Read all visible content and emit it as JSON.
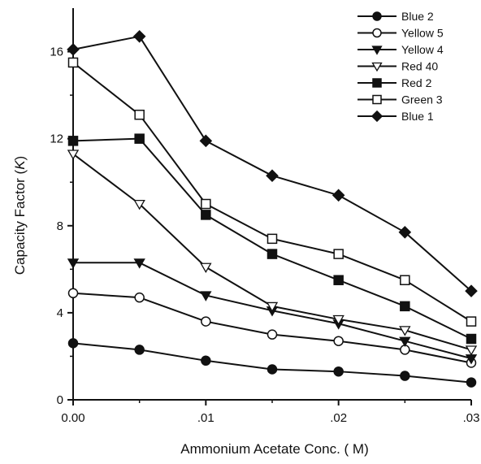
{
  "chart_data": {
    "type": "line",
    "title": "",
    "xlabel": "Ammonium Acetate Conc. ( M)",
    "ylabel_prefix": "Capacity Factor (",
    "ylabel_symbol": "K",
    "ylabel_suffix": ")",
    "xlim": [
      0,
      0.03
    ],
    "ylim": [
      0,
      18
    ],
    "x": [
      0.0,
      0.005,
      0.01,
      0.015,
      0.02,
      0.025,
      0.03
    ],
    "x_ticks": [
      {
        "value": 0.0,
        "label": "0.00"
      },
      {
        "value": 0.01,
        "label": ".01"
      },
      {
        "value": 0.02,
        "label": ".02"
      },
      {
        "value": 0.03,
        "label": ".03"
      }
    ],
    "y_ticks": [
      {
        "value": 0,
        "label": "0"
      },
      {
        "value": 4,
        "label": "4"
      },
      {
        "value": 8,
        "label": "8"
      },
      {
        "value": 12,
        "label": "12"
      },
      {
        "value": 16,
        "label": "16"
      }
    ],
    "grid": false,
    "legend_position": "top-right",
    "series": [
      {
        "name": "Blue 2",
        "marker": "circle-filled",
        "values": [
          2.6,
          2.3,
          1.8,
          1.4,
          1.3,
          1.1,
          0.8
        ]
      },
      {
        "name": "Yellow 5",
        "marker": "circle-open",
        "values": [
          4.9,
          4.7,
          3.6,
          3.0,
          2.7,
          2.3,
          1.7
        ]
      },
      {
        "name": "Yellow 4",
        "marker": "triangle-down-filled",
        "values": [
          6.3,
          6.3,
          4.8,
          4.1,
          3.5,
          2.7,
          1.9
        ]
      },
      {
        "name": "Red 40",
        "marker": "triangle-down-open",
        "values": [
          11.3,
          9.0,
          6.1,
          4.3,
          3.7,
          3.2,
          2.3
        ]
      },
      {
        "name": "Red 2",
        "marker": "square-filled",
        "values": [
          11.9,
          12.0,
          8.5,
          6.7,
          5.5,
          4.3,
          2.8
        ]
      },
      {
        "name": "Green 3",
        "marker": "square-open",
        "values": [
          15.5,
          13.1,
          9.0,
          7.4,
          6.7,
          5.5,
          3.6
        ]
      },
      {
        "name": "Blue 1",
        "marker": "diamond-filled",
        "values": [
          16.1,
          16.7,
          11.9,
          10.3,
          9.4,
          7.7,
          5.0
        ]
      }
    ]
  }
}
